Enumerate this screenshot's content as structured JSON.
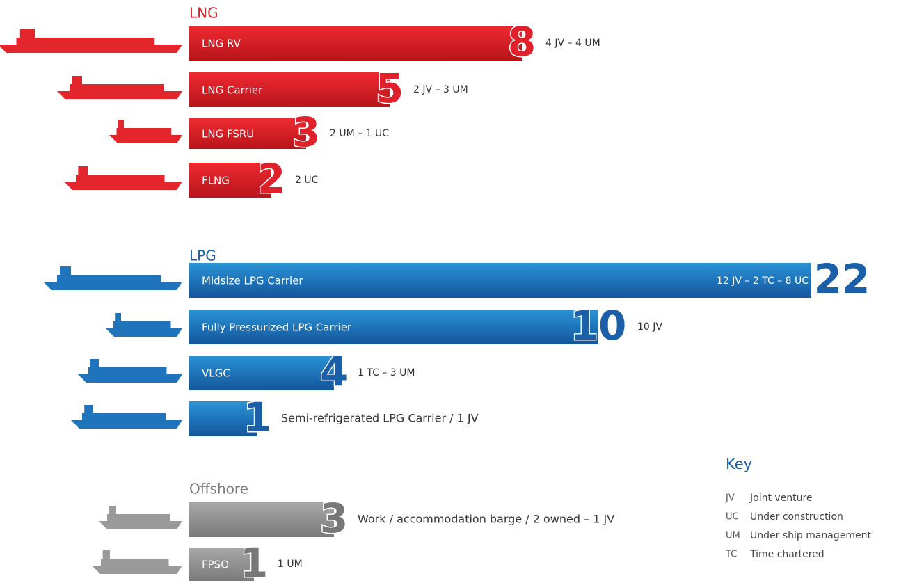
{
  "groups": [
    {
      "title": "LNG",
      "items": [
        {
          "label": "LNG RV",
          "count": 8,
          "note": "4 JV – 4 UM"
        },
        {
          "label": "LNG Carrier",
          "count": 5,
          "note": "2 JV – 3 UM"
        },
        {
          "label": "LNG FSRU",
          "count": 3,
          "note": "2 UM – 1 UC"
        },
        {
          "label": "FLNG",
          "count": 2,
          "note": "2 UC"
        }
      ]
    },
    {
      "title": "LPG",
      "items": [
        {
          "label": "Midsize LPG Carrier",
          "count": 22,
          "note": "12 JV – 2 TC – 8 UC"
        },
        {
          "label": "Fully Pressurized LPG Carrier",
          "count": 10,
          "note": "10 JV"
        },
        {
          "label": "VLGC",
          "count": 4,
          "note": "1 TC – 3 UM"
        },
        {
          "count": 1,
          "note": "Semi-refrigerated LPG Carrier / 1 JV"
        }
      ]
    },
    {
      "title": "Offshore",
      "items": [
        {
          "count": 3,
          "note": "Work / accommodation barge / 2 owned – 1 JV"
        },
        {
          "label": "FPSO",
          "count": 1,
          "note": "1 UM"
        }
      ]
    }
  ],
  "key": {
    "title": "Key",
    "entries": [
      {
        "code": "JV",
        "meaning": "Joint venture"
      },
      {
        "code": "UC",
        "meaning": "Under construction"
      },
      {
        "code": "UM",
        "meaning": "Under ship management"
      },
      {
        "code": "TC",
        "meaning": "Time chartered"
      }
    ]
  }
}
